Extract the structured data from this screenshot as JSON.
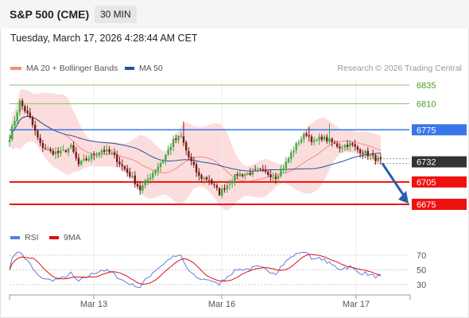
{
  "header": {
    "symbol": "S&P 500 (CME)",
    "timeframe": "30 MIN"
  },
  "datetime": "Tuesday, March 17, 2026 4:28:44 AM CET",
  "credit": "Research © 2026 Trading Central",
  "legend": {
    "ma_bb": {
      "label": "MA 20 + Bollinger Bands",
      "color": "#f08c86"
    },
    "ma50": {
      "label": "MA 50",
      "color": "#27539e"
    },
    "rsi": {
      "label": "RSI",
      "color": "#5b7fdc"
    },
    "rsi_ma": {
      "label": "9MA",
      "color": "#dd1111"
    }
  },
  "colors": {
    "bull": "#3fae3f",
    "bear": "#7a1a1a",
    "band": "#fbd2d2",
    "resistance": "#3a76ea",
    "support": "#ee1111",
    "target": "#8cc26b",
    "arrow": "#2a5ea8"
  },
  "chart_data": [
    {
      "type": "candlestick",
      "ylim": [
        6658,
        6850
      ],
      "x_ticks": [
        "Mar 13",
        "Mar 16",
        "Mar 17"
      ],
      "current_price": 6732,
      "levels": [
        {
          "value": 6835,
          "label": "6835",
          "kind": "target"
        },
        {
          "value": 6810,
          "label": "6810",
          "kind": "target"
        },
        {
          "value": 6775,
          "label": "6775",
          "kind": "resistance"
        },
        {
          "value": 6732,
          "label": "6732",
          "kind": "current"
        },
        {
          "value": 6705,
          "label": "6705",
          "kind": "support"
        },
        {
          "value": 6675,
          "label": "6675",
          "kind": "support"
        }
      ],
      "forecast": {
        "direction": "down",
        "from": 6730,
        "to": 6675
      },
      "waypoints": [
        [
          0,
          6765
        ],
        [
          4,
          6812
        ],
        [
          8,
          6790
        ],
        [
          12,
          6755
        ],
        [
          16,
          6745
        ],
        [
          20,
          6744
        ],
        [
          24,
          6752
        ],
        [
          27,
          6728
        ],
        [
          32,
          6740
        ],
        [
          36,
          6748
        ],
        [
          40,
          6743
        ],
        [
          44,
          6726
        ],
        [
          48,
          6710
        ],
        [
          51,
          6695
        ],
        [
          56,
          6718
        ],
        [
          60,
          6735
        ],
        [
          64,
          6760
        ],
        [
          67,
          6766
        ],
        [
          70,
          6738
        ],
        [
          74,
          6712
        ],
        [
          78,
          6708
        ],
        [
          82,
          6690
        ],
        [
          86,
          6705
        ],
        [
          89,
          6715
        ],
        [
          93,
          6716
        ],
        [
          97,
          6720
        ],
        [
          101,
          6716
        ],
        [
          104,
          6712
        ],
        [
          107,
          6725
        ],
        [
          110,
          6743
        ],
        [
          113,
          6760
        ],
        [
          116,
          6770
        ],
        [
          119,
          6758
        ],
        [
          122,
          6765
        ],
        [
          125,
          6760
        ],
        [
          129,
          6752
        ],
        [
          133,
          6756
        ],
        [
          136,
          6748
        ],
        [
          139,
          6744
        ],
        [
          142,
          6738
        ],
        [
          145,
          6733
        ]
      ]
    },
    {
      "type": "line",
      "name": "RSI",
      "ylim": [
        24,
        76
      ],
      "y_ticks": [
        70,
        50,
        30
      ]
    }
  ]
}
